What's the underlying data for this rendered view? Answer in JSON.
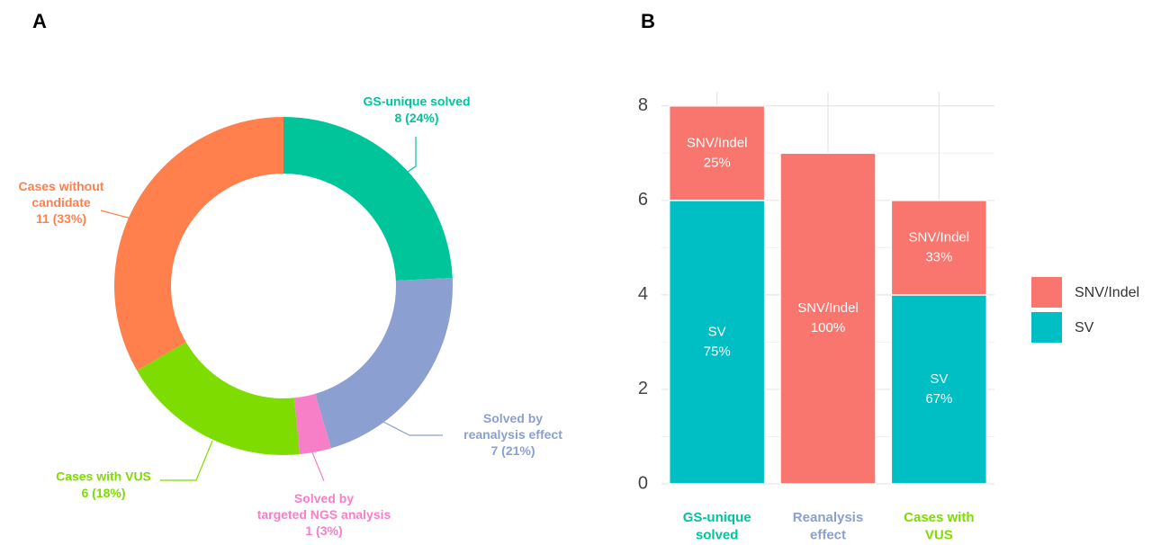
{
  "chart_data": [
    {
      "type": "pie",
      "panel": "A",
      "donut": true,
      "categories": [
        "GS-unique solved",
        "Solved by\nreanalysis effect",
        "Solved by\ntargeted NGS analysis",
        "Cases with VUS",
        "Cases without\ncandidate"
      ],
      "values": [
        8,
        7,
        1,
        6,
        11
      ],
      "value_labels": [
        "8 (24%)",
        "7 (21%)",
        "1 (3%)",
        "6 (18%)",
        "11 (33%)"
      ],
      "colors": [
        "#00c49a",
        "#8b9fd0",
        "#f77fc7",
        "#7fdc00",
        "#ff7f4d"
      ]
    },
    {
      "type": "bar",
      "panel": "B",
      "stacked": true,
      "categories": [
        "GS-unique\nsolved",
        "Reanalysis\neffect",
        "Cases with\nVUS"
      ],
      "category_colors": [
        "#00c49a",
        "#8b9fd0",
        "#7fdc00"
      ],
      "series": [
        {
          "name": "SV",
          "color": "#00bfc4",
          "values": [
            6,
            0,
            4
          ],
          "labels": [
            "75%",
            null,
            "67%"
          ]
        },
        {
          "name": "SNV/Indel",
          "color": "#f8766d",
          "values": [
            2,
            7,
            2
          ],
          "labels": [
            "25%",
            "100%",
            "33%"
          ]
        }
      ],
      "ylim": [
        0,
        8.3
      ],
      "yticks": [
        0,
        2,
        4,
        6,
        8
      ],
      "grid": true,
      "legend": "right"
    }
  ]
}
